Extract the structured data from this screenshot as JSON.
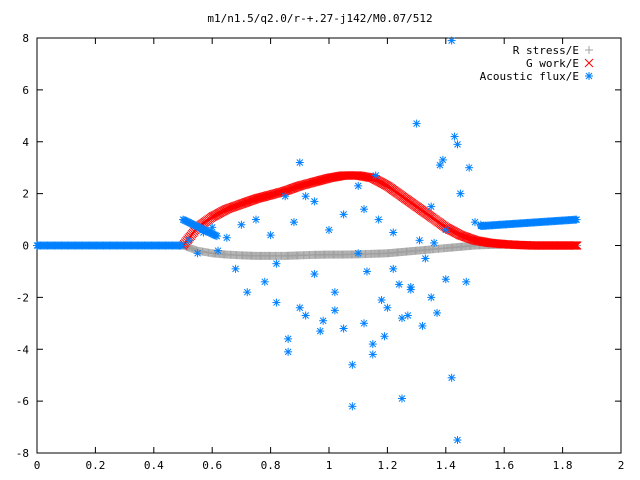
{
  "chart_data": {
    "type": "scatter",
    "title": "m1/n1.5/q2.0/r-+.27-j142/M0.07/512",
    "xlabel": "",
    "ylabel": "",
    "xlim": [
      0,
      2
    ],
    "ylim": [
      -8,
      8
    ],
    "xticks": [
      0,
      0.2,
      0.4,
      0.6,
      0.8,
      1,
      1.2,
      1.4,
      1.6,
      1.8,
      2
    ],
    "xtick_labels": [
      "0",
      "0.2",
      "0.4",
      "0.6",
      "0.8",
      "1",
      "1.2",
      "1.4",
      "1.6",
      "1.8",
      "2"
    ],
    "yticks": [
      -8,
      -6,
      -4,
      -2,
      0,
      2,
      4,
      6,
      8
    ],
    "ytick_labels": [
      "-8",
      "-6",
      "-4",
      "-2",
      "0",
      "2",
      "4",
      "6",
      "8"
    ],
    "grid": false,
    "legend_position": "top-right",
    "series": [
      {
        "name": "R stress/E",
        "marker": "plus",
        "color": "#a0a0a0",
        "x": [
          0.5,
          0.55,
          0.6,
          0.65,
          0.7,
          0.75,
          0.8,
          0.85,
          0.9,
          0.95,
          1.0,
          1.05,
          1.1,
          1.15,
          1.2,
          1.25,
          1.3,
          1.35,
          1.4,
          1.45,
          1.5,
          1.55,
          1.6,
          1.65,
          1.7,
          1.75,
          1.8,
          1.85
        ],
        "y": [
          0.0,
          -0.2,
          -0.3,
          -0.35,
          -0.38,
          -0.4,
          -0.4,
          -0.4,
          -0.38,
          -0.36,
          -0.35,
          -0.35,
          -0.34,
          -0.32,
          -0.3,
          -0.25,
          -0.2,
          -0.15,
          -0.1,
          -0.05,
          0.0,
          0.02,
          0.03,
          0.02,
          0.0,
          0.0,
          0.0,
          0.0
        ]
      },
      {
        "name": "G work/E",
        "marker": "cross",
        "color": "#ff0000",
        "x": [
          0.5,
          0.55,
          0.6,
          0.65,
          0.7,
          0.75,
          0.8,
          0.85,
          0.9,
          0.95,
          1.0,
          1.05,
          1.1,
          1.15,
          1.2,
          1.25,
          1.3,
          1.35,
          1.4,
          1.45,
          1.5,
          1.55,
          1.6,
          1.65,
          1.7,
          1.75,
          1.8,
          1.85
        ],
        "y": [
          0.0,
          0.7,
          1.1,
          1.4,
          1.6,
          1.8,
          1.95,
          2.1,
          2.3,
          2.45,
          2.6,
          2.7,
          2.7,
          2.6,
          2.3,
          1.9,
          1.5,
          1.1,
          0.7,
          0.4,
          0.2,
          0.1,
          0.05,
          0.02,
          0.0,
          0.0,
          0.0,
          0.0
        ]
      },
      {
        "name": "Acoustic flux/E",
        "marker": "star",
        "color": "#0080ff",
        "x": [
          0.0,
          0.05,
          0.1,
          0.15,
          0.2,
          0.25,
          0.3,
          0.35,
          0.4,
          0.45,
          0.5,
          0.52,
          0.55,
          0.58,
          0.6,
          0.52,
          0.55,
          0.57,
          0.6,
          0.62,
          0.65,
          0.68,
          0.7,
          0.72,
          0.75,
          0.78,
          0.8,
          0.82,
          0.85,
          0.86,
          0.88,
          0.9,
          0.92,
          0.95,
          0.97,
          1.0,
          1.02,
          1.05,
          1.08,
          1.1,
          1.12,
          1.15,
          1.17,
          1.2,
          1.22,
          1.25,
          1.28,
          1.3,
          1.32,
          1.35,
          1.37,
          1.4,
          1.42,
          1.45,
          1.47,
          1.5,
          0.82,
          0.86,
          0.9,
          0.92,
          0.95,
          0.98,
          1.02,
          1.05,
          1.08,
          1.12,
          1.15,
          1.18,
          1.22,
          1.25,
          1.28,
          1.35,
          1.38,
          1.4,
          1.43,
          1.1,
          1.13,
          1.16,
          1.19,
          1.24,
          1.27,
          1.31,
          1.33,
          1.36,
          1.44,
          1.48,
          1.39,
          1.42,
          1.44,
          1.52,
          1.55,
          1.6,
          1.65,
          1.7,
          1.75,
          1.8,
          1.85
        ],
        "y": [
          0,
          0,
          0,
          0,
          0,
          0,
          0,
          0,
          0,
          0,
          0,
          1.1,
          0.8,
          0.6,
          0.4,
          0.2,
          -0.3,
          0.5,
          0.7,
          -0.2,
          0.3,
          -0.9,
          0.8,
          -1.8,
          1.0,
          -1.4,
          0.4,
          -2.2,
          1.9,
          -4.1,
          0.9,
          3.2,
          -2.7,
          1.7,
          -3.3,
          0.6,
          -2.5,
          1.2,
          -4.6,
          -0.3,
          1.4,
          -3.8,
          1.0,
          -2.4,
          0.5,
          -5.9,
          -1.7,
          4.7,
          -3.1,
          1.5,
          -2.6,
          0.6,
          -5.1,
          2.0,
          -1.4,
          0.9,
          -0.7,
          -3.6,
          -2.4,
          1.9,
          -1.1,
          -2.9,
          -1.8,
          -3.2,
          -6.2,
          -3.0,
          -4.2,
          -2.1,
          -0.9,
          -2.8,
          -1.6,
          -2.0,
          3.1,
          -1.3,
          4.2,
          2.3,
          -1.0,
          2.7,
          -3.5,
          -1.5,
          -2.7,
          0.2,
          -0.5,
          0.1,
          -7.5,
          3.0,
          3.3,
          7.9,
          3.9,
          0.8,
          0.75,
          0.8,
          0.85,
          0.9,
          0.95,
          1.0,
          0.95
        ]
      }
    ]
  }
}
